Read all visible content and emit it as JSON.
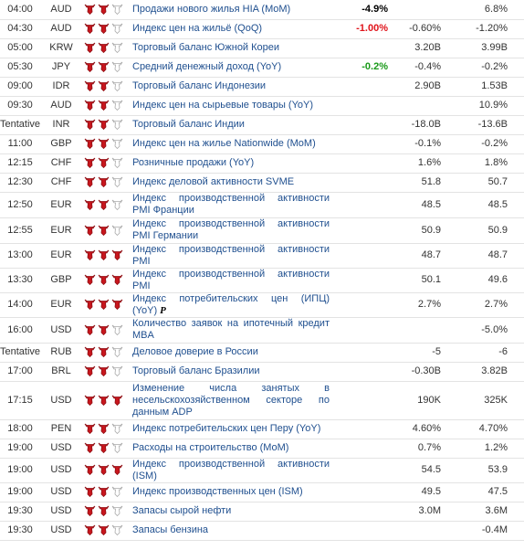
{
  "rows": [
    {
      "time": "04:00",
      "currency": "AUD",
      "importance": 2,
      "event": "Продажи нового жилья HIA (MoM)",
      "actual": "-4.9%",
      "actual_color": "#000000",
      "previous": "6.8%"
    },
    {
      "time": "04:30",
      "currency": "AUD",
      "importance": 2,
      "event": "Индекс цен на жильё (QoQ)",
      "actual": "-1.00%",
      "actual_color": "#e0141b",
      "forecast": "-0.60%",
      "previous": "-1.20%"
    },
    {
      "time": "05:00",
      "currency": "KRW",
      "importance": 2,
      "event": "Торговый баланс Южной Кореи",
      "forecast": "3.20B",
      "previous": "3.99B"
    },
    {
      "time": "05:30",
      "currency": "JPY",
      "importance": 2,
      "event": "Средний денежный доход (YoY)",
      "actual": "-0.2%",
      "actual_color": "#1a9a1a",
      "forecast": "-0.4%",
      "previous": "-0.2%"
    },
    {
      "time": "09:00",
      "currency": "IDR",
      "importance": 2,
      "event": "Торговый баланс Индонезии",
      "forecast": "2.90B",
      "previous": "1.53B"
    },
    {
      "time": "09:30",
      "currency": "AUD",
      "importance": 2,
      "event": "Индекс цен на сырьевые товары (YoY)",
      "previous": "10.9%"
    },
    {
      "time": "Tentative",
      "currency": "INR",
      "importance": 2,
      "event": "Торговый баланс Индии",
      "forecast": "-18.0B",
      "previous": "-13.6B"
    },
    {
      "time": "11:00",
      "currency": "GBP",
      "importance": 2,
      "event": "Индекс цен на жилье Nationwide (MoM)",
      "forecast": "-0.1%",
      "previous": "-0.2%"
    },
    {
      "time": "12:15",
      "currency": "CHF",
      "importance": 2,
      "event": "Розничные продажи (YoY)",
      "forecast": "1.6%",
      "previous": "1.8%"
    },
    {
      "time": "12:30",
      "currency": "CHF",
      "importance": 2,
      "event": "Индекс деловой активности SVME",
      "forecast": "51.8",
      "previous": "50.7"
    },
    {
      "time": "12:50",
      "currency": "EUR",
      "importance": 2,
      "event": "Индекс производственной активности PMI Франции",
      "forecast": "48.5",
      "previous": "48.5"
    },
    {
      "time": "12:55",
      "currency": "EUR",
      "importance": 2,
      "event": "Индекс производственной активности PMI Германии",
      "forecast": "50.9",
      "previous": "50.9"
    },
    {
      "time": "13:00",
      "currency": "EUR",
      "importance": 3,
      "event": "Индекс производственной активности PMI",
      "forecast": "48.7",
      "previous": "48.7"
    },
    {
      "time": "13:30",
      "currency": "GBP",
      "importance": 3,
      "event": "Индекс производственной активности PMI",
      "forecast": "50.1",
      "previous": "49.6"
    },
    {
      "time": "14:00",
      "currency": "EUR",
      "importance": 3,
      "event": "Индекс потребительских цен (ИПЦ) (YoY)",
      "preliminary": true,
      "forecast": "2.7%",
      "previous": "2.7%"
    },
    {
      "time": "16:00",
      "currency": "USD",
      "importance": 2,
      "event": "Количество заявок на ипотечный кредит MBA",
      "previous": "-5.0%"
    },
    {
      "time": "Tentative",
      "currency": "RUB",
      "importance": 2,
      "event": "Деловое доверие в России",
      "forecast": "-5",
      "previous": "-6"
    },
    {
      "time": "17:00",
      "currency": "BRL",
      "importance": 2,
      "event": "Торговый баланс Бразилии",
      "forecast": "-0.30B",
      "previous": "3.82B"
    },
    {
      "time": "17:15",
      "currency": "USD",
      "importance": 3,
      "event": "Изменение числа занятых в несельскохозяйственном секторе по данным ADP",
      "forecast": "190K",
      "previous": "325K"
    },
    {
      "time": "18:00",
      "currency": "PEN",
      "importance": 2,
      "event": "Индекс потребительских цен Перу (YoY)",
      "forecast": "4.60%",
      "previous": "4.70%"
    },
    {
      "time": "19:00",
      "currency": "USD",
      "importance": 2,
      "event": "Расходы на строительство (MoM)",
      "forecast": "0.7%",
      "previous": "1.2%"
    },
    {
      "time": "19:00",
      "currency": "USD",
      "importance": 3,
      "event": "Индекс производственной активности (ISM)",
      "forecast": "54.5",
      "previous": "53.9"
    },
    {
      "time": "19:00",
      "currency": "USD",
      "importance": 2,
      "event": "Индекс производственных цен (ISM)",
      "forecast": "49.5",
      "previous": "47.5"
    },
    {
      "time": "19:30",
      "currency": "USD",
      "importance": 2,
      "event": "Запасы сырой нефти",
      "forecast": "3.0M",
      "previous": "3.6M"
    },
    {
      "time": "19:30",
      "currency": "USD",
      "importance": 2,
      "event": "Запасы бензина",
      "previous": "-0.4M"
    }
  ]
}
